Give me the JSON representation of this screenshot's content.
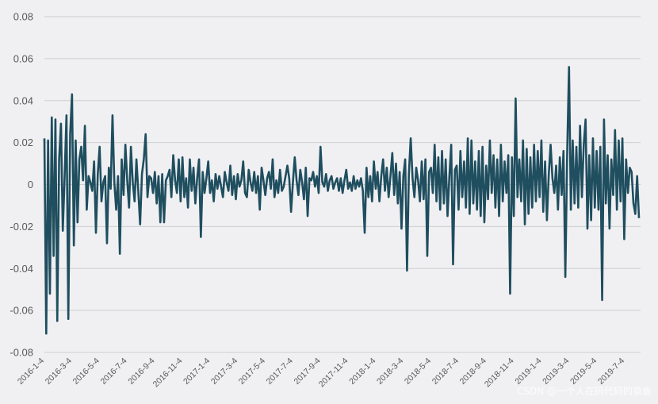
{
  "chart_data": {
    "type": "line",
    "title": "",
    "xlabel": "",
    "ylabel": "",
    "ylim": [
      -0.08,
      0.08
    ],
    "yticks": [
      "0.08",
      "0.06",
      "0.04",
      "0.02",
      "0",
      "-0.02",
      "-0.04",
      "-0.06",
      "-0.08"
    ],
    "ytick_values": [
      0.08,
      0.06,
      0.04,
      0.02,
      0,
      -0.02,
      -0.04,
      -0.06,
      -0.08
    ],
    "xticks": [
      "2016-1-4",
      "2016-3-4",
      "2016-5-4",
      "2016-7-4",
      "2016-9-4",
      "2016-11-4",
      "2017-1-4",
      "2017-3-4",
      "2017-5-4",
      "2017-7-4",
      "2017-9-4",
      "2017-11-4",
      "2018-1-4",
      "2018-3-4",
      "2018-5-4",
      "2018-7-4",
      "2018-9-4",
      "2018-11-4",
      "2019-1-4",
      "2019-3-4",
      "2019-5-4",
      "2019-7-4"
    ],
    "grid": true,
    "legend": "none",
    "color": "#1f4e5f",
    "series": [
      {
        "values": [
          0.022,
          -0.071,
          0.021,
          -0.052,
          0.032,
          -0.034,
          0.031,
          -0.065,
          0.012,
          0.029,
          -0.022,
          0.004,
          0.033,
          -0.064,
          0.024,
          0.043,
          -0.029,
          0.021,
          -0.018,
          0.012,
          0.018,
          0.002,
          0.028,
          -0.012,
          0.004,
          0.001,
          -0.003,
          0.011,
          -0.023,
          0.005,
          0.018,
          -0.008,
          0.001,
          0.004,
          -0.028,
          0.008,
          -0.002,
          0.033,
          0.001,
          -0.012,
          0.004,
          -0.033,
          0.012,
          -0.005,
          0.019,
          0.002,
          -0.011,
          0.018,
          0.001,
          -0.008,
          0.012,
          -0.003,
          -0.019,
          0.005,
          0.012,
          0.024,
          -0.006,
          0.004,
          0.003,
          -0.004,
          0.006,
          -0.009,
          0.004,
          -0.018,
          0.005,
          -0.018,
          0.002,
          0.004,
          0.007,
          -0.006,
          0.014,
          0.002,
          -0.004,
          0.012,
          -0.008,
          0.013,
          -0.006,
          0.003,
          -0.011,
          0.012,
          -0.003,
          0.008,
          -0.009,
          0.003,
          0.012,
          -0.025,
          0.006,
          -0.004,
          0.003,
          0.011,
          -0.004,
          0.002,
          -0.008,
          0.005,
          -0.002,
          0.004,
          -0.001,
          -0.006,
          0.006,
          0.001,
          -0.003,
          0.009,
          -0.005,
          0.004,
          -0.007,
          0.005,
          -0.001,
          0.002,
          0.011,
          -0.004,
          -0.006,
          0.007,
          0.001,
          -0.003,
          0.006,
          -0.004,
          0.004,
          -0.012,
          0.008,
          0.002,
          -0.005,
          0.003,
          0.006,
          -0.002,
          0.012,
          -0.006,
          0.002,
          -0.004,
          0.007,
          -0.003,
          -0.001,
          0.004,
          0.009,
          0.003,
          -0.013,
          0.001,
          0.013,
          0.002,
          -0.005,
          0.007,
          0.001,
          -0.007,
          0.008,
          -0.015,
          0.003,
          0.002,
          0.006,
          -0.001,
          0.004,
          -0.004,
          0.018,
          0.001,
          -0.001,
          0.005,
          -0.003,
          0.002,
          0.004,
          -0.002,
          0.001,
          0.003,
          -0.003,
          0.003,
          -0.004,
          0.002,
          0.007,
          -0.002,
          0.001,
          -0.003,
          0.004,
          -0.002,
          0.002,
          -0.001,
          0.003,
          -0.003,
          -0.023,
          0.008,
          -0.006,
          0.004,
          -0.008,
          0.011,
          -0.002,
          0.006,
          -0.008,
          0.004,
          0.012,
          -0.003,
          0.008,
          -0.006,
          0.004,
          0.015,
          -0.005,
          0.01,
          -0.009,
          0.006,
          -0.021,
          0.004,
          0.012,
          -0.041,
          0.005,
          0.022,
          0.003,
          -0.006,
          0.008,
          0.002,
          -0.008,
          0.011,
          -0.007,
          0.012,
          -0.034,
          0.006,
          0.008,
          -0.004,
          0.019,
          -0.008,
          0.013,
          -0.012,
          0.016,
          -0.009,
          0.012,
          -0.015,
          0.004,
          0.019,
          -0.038,
          0.007,
          0.009,
          -0.012,
          0.016,
          -0.006,
          0.011,
          -0.011,
          0.022,
          -0.014,
          0.021,
          -0.009,
          0.011,
          -0.012,
          0.016,
          -0.015,
          0.018,
          -0.018,
          0.009,
          -0.007,
          0.021,
          -0.004,
          0.014,
          -0.011,
          0.012,
          -0.015,
          0.019,
          -0.008,
          0.011,
          -0.004,
          0.014,
          -0.052,
          0.013,
          -0.015,
          0.041,
          -0.006,
          0.012,
          -0.008,
          0.021,
          -0.019,
          0.017,
          -0.014,
          0.013,
          -0.011,
          0.019,
          -0.008,
          0.016,
          -0.006,
          0.021,
          -0.013,
          0.011,
          -0.017,
          0.005,
          0.019,
          0.003,
          -0.004,
          0.009,
          -0.012,
          0.013,
          -0.005,
          0.016,
          -0.044,
          0.015,
          0.056,
          -0.012,
          0.021,
          -0.009,
          0.018,
          -0.011,
          0.028,
          -0.006,
          0.019,
          0.031,
          -0.021,
          0.014,
          -0.017,
          0.022,
          -0.011,
          0.016,
          -0.012,
          0.018,
          -0.055,
          0.031,
          -0.009,
          0.014,
          -0.021,
          0.012,
          -0.005,
          0.026,
          -0.012,
          0.021,
          -0.008,
          0.022,
          -0.026,
          0.012,
          -0.004,
          0.008,
          0.006,
          -0.009,
          -0.014,
          0.004,
          -0.016
        ]
      }
    ]
  },
  "watermark": "CSDN @一个人在码代码的章鱼"
}
